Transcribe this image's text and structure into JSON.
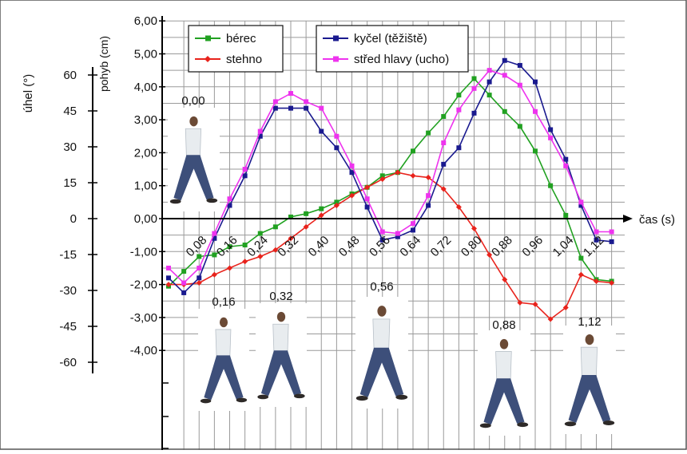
{
  "chart_data": {
    "type": "line",
    "x_axis": {
      "label": "čas (s)",
      "tick_labels": [
        "0,08",
        "0,16",
        "0,24",
        "0,32",
        "0,40",
        "0,48",
        "0,56",
        "0,64",
        "0,72",
        "0,80",
        "0,88",
        "0,96",
        "1,04",
        "1,12"
      ],
      "xlim": [
        0,
        1.2
      ]
    },
    "y_axis_right": {
      "label": "pohyb (cm)",
      "tick_labels": [
        "6,00",
        "5,00",
        "4,00",
        "3,00",
        "2,00",
        "1,00",
        "0,00",
        "-1,00",
        "-2,00",
        "-3,00",
        "-4,00"
      ],
      "ylim": [
        -4,
        6
      ]
    },
    "y_axis_left": {
      "label": "úhel (°)",
      "tick_labels": [
        "60",
        "45",
        "30",
        "15",
        "0",
        "-15",
        "-30",
        "-45",
        "-60"
      ],
      "ylim": [
        -60,
        60
      ]
    },
    "legend": [
      {
        "name": "bérec",
        "series": "berec"
      },
      {
        "name": "stehno",
        "series": "stehno"
      },
      {
        "name": "kyčel (těžiště)",
        "series": "kycel"
      },
      {
        "name": "střed hlavy (ucho)",
        "series": "hlava"
      }
    ],
    "series": [
      {
        "id": "berec",
        "name": "bérec",
        "axis": "pohyb (cm)",
        "color": "#21a121",
        "marker": "square",
        "x": [
          0,
          0.04,
          0.08,
          0.12,
          0.16,
          0.2,
          0.24,
          0.28,
          0.32,
          0.36,
          0.4,
          0.44,
          0.48,
          0.52,
          0.56,
          0.6,
          0.64,
          0.68,
          0.72,
          0.76,
          0.8,
          0.84,
          0.88,
          0.92,
          0.96,
          1.0,
          1.04,
          1.08,
          1.12,
          1.16
        ],
        "y": [
          -2.05,
          -1.6,
          -1.15,
          -1.1,
          -0.85,
          -0.8,
          -0.45,
          -0.25,
          0.05,
          0.15,
          0.3,
          0.5,
          0.75,
          0.95,
          1.3,
          1.4,
          2.05,
          2.6,
          3.1,
          3.75,
          4.25,
          3.75,
          3.25,
          2.8,
          2.05,
          1.0,
          0.1,
          -1.2,
          -1.85,
          -1.9
        ]
      },
      {
        "id": "stehno",
        "name": "stehno",
        "axis": "pohyb (cm)",
        "color": "#e8231c",
        "marker": "diamond",
        "x": [
          0,
          0.04,
          0.08,
          0.12,
          0.16,
          0.2,
          0.24,
          0.28,
          0.32,
          0.36,
          0.4,
          0.44,
          0.48,
          0.52,
          0.56,
          0.6,
          0.64,
          0.68,
          0.72,
          0.76,
          0.8,
          0.84,
          0.88,
          0.92,
          0.96,
          1.0,
          1.04,
          1.08,
          1.12,
          1.16
        ],
        "y": [
          -2.0,
          -2.0,
          -1.95,
          -1.7,
          -1.5,
          -1.3,
          -1.15,
          -0.95,
          -0.6,
          -0.25,
          0.1,
          0.4,
          0.7,
          0.95,
          1.2,
          1.4,
          1.3,
          1.25,
          0.9,
          0.35,
          -0.3,
          -1.1,
          -1.85,
          -2.55,
          -2.6,
          -3.05,
          -2.7,
          -1.7,
          -1.9,
          -1.95
        ]
      },
      {
        "id": "kycel",
        "name": "kyčel (těžiště)",
        "axis": "pohyb (cm)",
        "color": "#1a1a8f",
        "marker": "square",
        "x": [
          0,
          0.04,
          0.08,
          0.12,
          0.16,
          0.2,
          0.24,
          0.28,
          0.32,
          0.36,
          0.4,
          0.44,
          0.48,
          0.52,
          0.56,
          0.6,
          0.64,
          0.68,
          0.72,
          0.76,
          0.8,
          0.84,
          0.88,
          0.92,
          0.96,
          1.0,
          1.04,
          1.08,
          1.12,
          1.16
        ],
        "y": [
          -1.8,
          -2.25,
          -1.8,
          -0.6,
          0.4,
          1.3,
          2.5,
          3.35,
          3.35,
          3.35,
          2.65,
          2.15,
          1.4,
          0.35,
          -0.65,
          -0.55,
          -0.35,
          0.4,
          1.65,
          2.15,
          3.2,
          4.15,
          4.8,
          4.65,
          4.15,
          2.7,
          1.8,
          0.4,
          -0.65,
          -0.7
        ]
      },
      {
        "id": "hlava",
        "name": "střed hlavy (ucho)",
        "axis": "pohyb (cm)",
        "color": "#ee33ee",
        "marker": "square",
        "x": [
          0,
          0.04,
          0.08,
          0.12,
          0.16,
          0.2,
          0.24,
          0.28,
          0.32,
          0.36,
          0.4,
          0.44,
          0.48,
          0.52,
          0.56,
          0.6,
          0.64,
          0.68,
          0.72,
          0.76,
          0.8,
          0.84,
          0.88,
          0.92,
          0.96,
          1.0,
          1.04,
          1.08,
          1.12,
          1.16
        ],
        "y": [
          -1.5,
          -1.95,
          -1.5,
          -0.45,
          0.6,
          1.5,
          2.65,
          3.55,
          3.8,
          3.55,
          3.35,
          2.5,
          1.6,
          0.6,
          -0.4,
          -0.45,
          -0.15,
          0.7,
          2.3,
          3.3,
          3.95,
          4.5,
          4.35,
          4.05,
          3.25,
          2.45,
          1.6,
          0.5,
          -0.4,
          -0.4
        ]
      }
    ],
    "frames": [
      {
        "time_label": "0,00"
      },
      {
        "time_label": "0,16"
      },
      {
        "time_label": "0,32"
      },
      {
        "time_label": "0,56"
      },
      {
        "time_label": "0,88"
      },
      {
        "time_label": "1,12"
      }
    ],
    "grid": true
  }
}
